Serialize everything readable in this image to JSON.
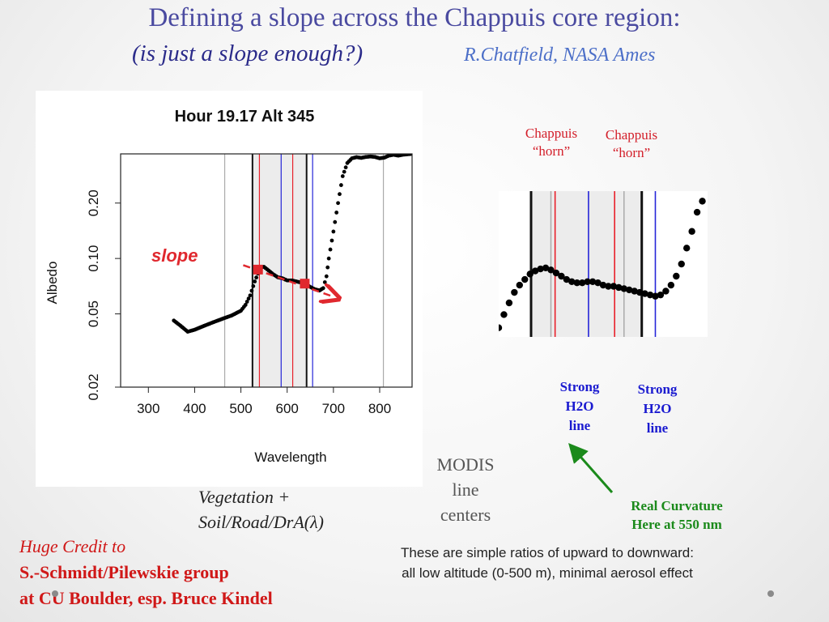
{
  "header": {
    "title": "Defining a slope across the Chappuis core region:",
    "subtitle": "(is just a slope enough?)",
    "author": "R.Chatfield, NASA Ames"
  },
  "labels": {
    "chappuis_horn_1": [
      "Chappuis",
      "“horn”"
    ],
    "chappuis_horn_2": [
      "Chappuis",
      "“horn”"
    ],
    "strong_h2o_1": [
      "Strong",
      "H2O",
      "line"
    ],
    "strong_h2o_2": [
      "Strong",
      "H2O",
      "line"
    ],
    "real_curvature": [
      "Real Curvature",
      "Here at 550 nm"
    ],
    "modis": [
      "MODIS",
      "line",
      "centers"
    ],
    "vegetation": [
      "Vegetation +",
      "Soil/Road/DrA(λ)"
    ],
    "credit": [
      "Huge Credit to",
      "S.-Schmidt/Pilewskie group",
      "at CU Boulder,  esp. Bruce Kindel"
    ],
    "ratios": [
      "These are simple ratios of upward to downward:",
      "all low altitude (0-500 m), minimal aerosol effect"
    ]
  },
  "colors": {
    "title": "#4a4aa0",
    "red_line": "#e8202a",
    "blue_line": "#2525d8",
    "slope_arrow": "#e0282e",
    "curvature_arrow": "#1b8a1b"
  },
  "chart_data": [
    {
      "type": "scatter",
      "title": "Hour 19.17 Alt 345",
      "xlabel": "Wavelength",
      "ylabel": "Albedo",
      "xlim": [
        240,
        870
      ],
      "ylim": [
        0.02,
        0.37
      ],
      "y_scale": "log",
      "x_ticks": [
        300,
        400,
        500,
        600,
        700,
        800
      ],
      "y_ticks": [
        0.02,
        0.05,
        0.1,
        0.2
      ],
      "y_tick_labels": [
        "0.02",
        "0.05",
        "0.10",
        "0.20"
      ],
      "grid": false,
      "annotation": "slope",
      "gray_lines": [
        465,
        808
      ],
      "black_lines": [
        525,
        642
      ],
      "red_lines": [
        540,
        612
      ],
      "blue_lines": [
        587,
        655
      ],
      "highlight_region": [
        525,
        642
      ],
      "slope_points": [
        [
          537,
          0.087
        ],
        [
          638,
          0.073
        ]
      ],
      "slope_arrow_end": [
        700,
        0.062
      ],
      "series": [
        {
          "x": [
            355,
            370,
            385,
            400,
            420,
            440,
            460,
            480,
            500,
            510,
            520,
            530,
            540,
            545,
            550,
            560,
            570,
            580,
            590,
            600,
            610,
            620,
            630,
            640,
            650,
            660,
            670,
            678,
            685,
            690,
            700,
            710,
            720,
            730,
            740,
            750,
            760,
            770,
            780,
            790,
            800,
            810,
            820,
            830,
            840,
            850,
            860,
            870
          ],
          "y": [
            0.046,
            0.043,
            0.04,
            0.041,
            0.043,
            0.045,
            0.047,
            0.049,
            0.052,
            0.056,
            0.063,
            0.075,
            0.087,
            0.09,
            0.09,
            0.086,
            0.082,
            0.079,
            0.078,
            0.076,
            0.076,
            0.075,
            0.074,
            0.073,
            0.07,
            0.068,
            0.067,
            0.069,
            0.08,
            0.1,
            0.14,
            0.2,
            0.28,
            0.33,
            0.35,
            0.355,
            0.352,
            0.356,
            0.358,
            0.356,
            0.35,
            0.353,
            0.362,
            0.366,
            0.362,
            0.366,
            0.368,
            0.37
          ]
        }
      ]
    },
    {
      "type": "scatter",
      "title": "",
      "xlabel": "",
      "ylabel": "",
      "xlim": [
        500,
        700
      ],
      "ylim": [
        0.055,
        0.22
      ],
      "y_scale": "log",
      "grid": false,
      "black_lines": [
        531,
        637
      ],
      "gray_lines": [
        550,
        620
      ],
      "red_lines": [
        554,
        611
      ],
      "blue_lines": [
        586,
        650
      ],
      "highlight_region": [
        531,
        637
      ],
      "series": [
        {
          "x": [
            500,
            505,
            510,
            515,
            520,
            525,
            530,
            535,
            540,
            545,
            550,
            555,
            560,
            565,
            570,
            575,
            580,
            585,
            590,
            595,
            600,
            605,
            610,
            615,
            620,
            625,
            630,
            635,
            640,
            645,
            650,
            655,
            660,
            665,
            670,
            675,
            680,
            685,
            690,
            695
          ],
          "y": [
            0.06,
            0.068,
            0.076,
            0.084,
            0.09,
            0.095,
            0.1,
            0.103,
            0.105,
            0.106,
            0.104,
            0.101,
            0.098,
            0.095,
            0.093,
            0.092,
            0.092,
            0.093,
            0.093,
            0.092,
            0.09,
            0.089,
            0.089,
            0.088,
            0.087,
            0.086,
            0.085,
            0.084,
            0.083,
            0.082,
            0.081,
            0.082,
            0.085,
            0.09,
            0.098,
            0.11,
            0.128,
            0.15,
            0.18,
            0.2
          ]
        }
      ]
    }
  ]
}
